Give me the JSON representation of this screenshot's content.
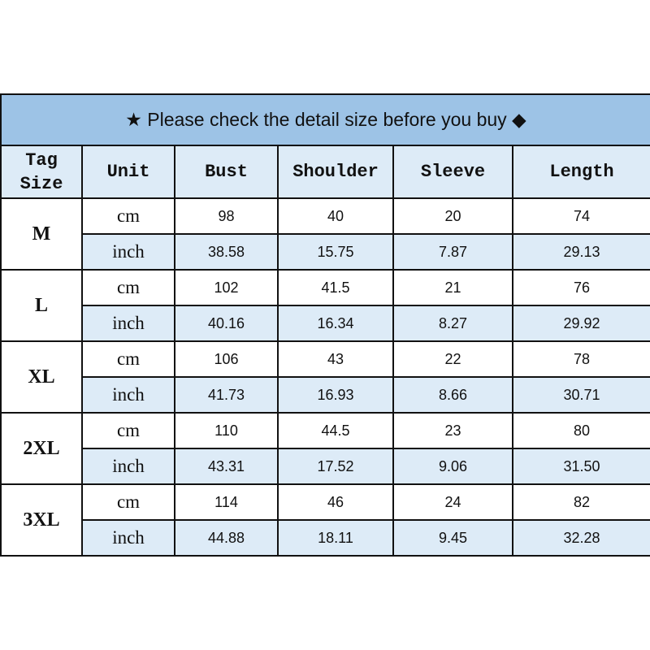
{
  "title": "★ Please check the detail size before you buy ◆",
  "colors": {
    "title_bg": "#9dc3e6",
    "alt_row_bg": "#ddebf7"
  },
  "headers": [
    "Tag Size",
    "Unit",
    "Bust",
    "Shoulder",
    "Sleeve",
    "Length"
  ],
  "rows": [
    {
      "size": "M",
      "cm": [
        "cm",
        "98",
        "40",
        "20",
        "74"
      ],
      "inch": [
        "inch",
        "38.58",
        "15.75",
        "7.87",
        "29.13"
      ]
    },
    {
      "size": "L",
      "cm": [
        "cm",
        "102",
        "41.5",
        "21",
        "76"
      ],
      "inch": [
        "inch",
        "40.16",
        "16.34",
        "8.27",
        "29.92"
      ]
    },
    {
      "size": "XL",
      "cm": [
        "cm",
        "106",
        "43",
        "22",
        "78"
      ],
      "inch": [
        "inch",
        "41.73",
        "16.93",
        "8.66",
        "30.71"
      ]
    },
    {
      "size": "2XL",
      "cm": [
        "cm",
        "110",
        "44.5",
        "23",
        "80"
      ],
      "inch": [
        "inch",
        "43.31",
        "17.52",
        "9.06",
        "31.50"
      ]
    },
    {
      "size": "3XL",
      "cm": [
        "cm",
        "114",
        "46",
        "24",
        "82"
      ],
      "inch": [
        "inch",
        "44.88",
        "18.11",
        "9.45",
        "32.28"
      ]
    }
  ]
}
